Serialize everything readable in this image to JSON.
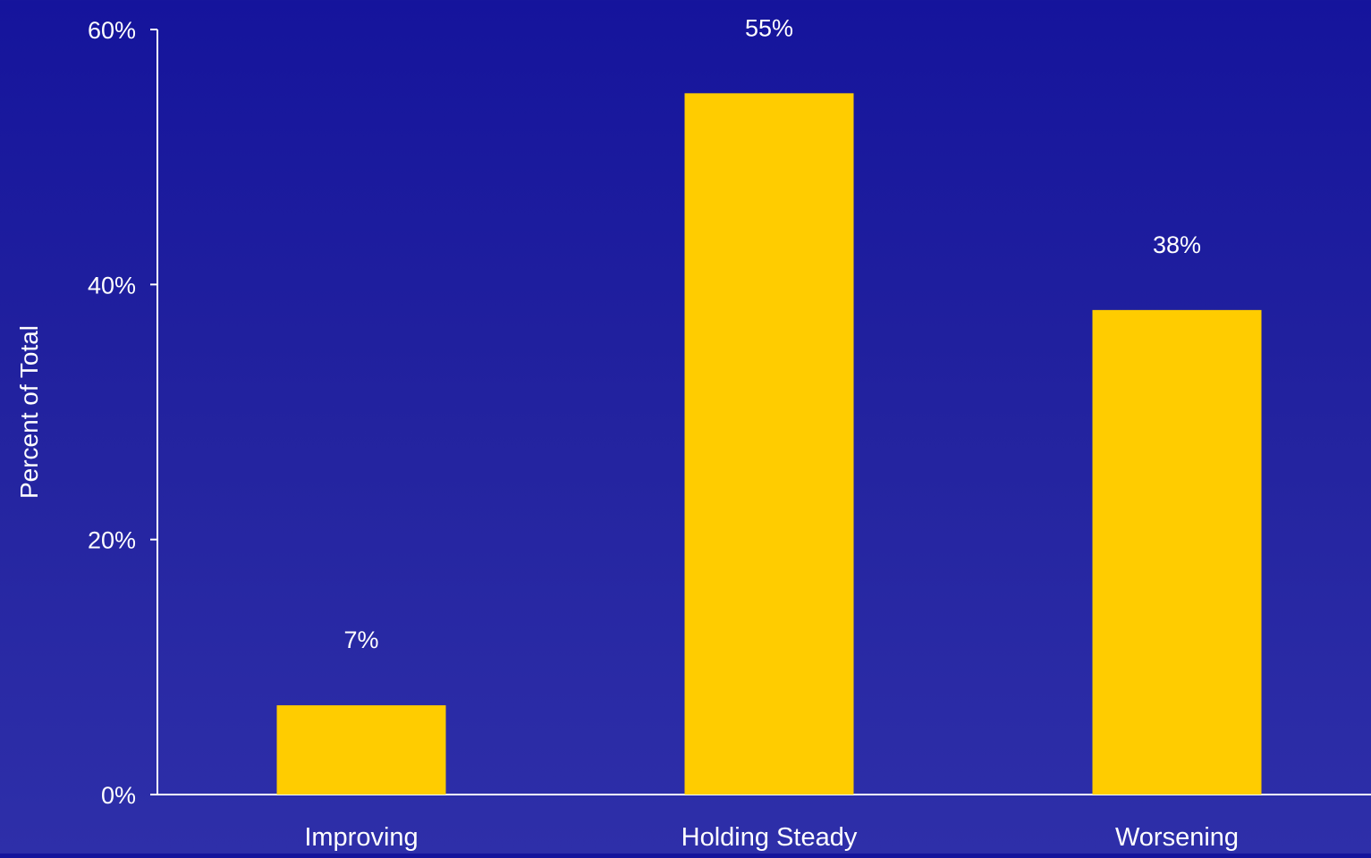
{
  "chart_data": {
    "type": "bar",
    "title": "",
    "xlabel": "",
    "ylabel": "Percent of Total",
    "categories": [
      "Improving",
      "Holding Steady",
      "Worsening"
    ],
    "values": [
      7,
      55,
      38
    ],
    "value_labels": [
      "7%",
      "55%",
      "38%"
    ],
    "ylim": [
      0,
      60
    ],
    "yticks": [
      0,
      20,
      40,
      60
    ],
    "ytick_labels": [
      "0%",
      "20%",
      "40%",
      "60%"
    ],
    "grid": false,
    "legend": "none",
    "colors": {
      "bar": "#ffcc00",
      "axis": "#ffffff",
      "text": "#ffffff",
      "background_top": "#15149c",
      "background_bottom": "#2e2fa9"
    }
  }
}
